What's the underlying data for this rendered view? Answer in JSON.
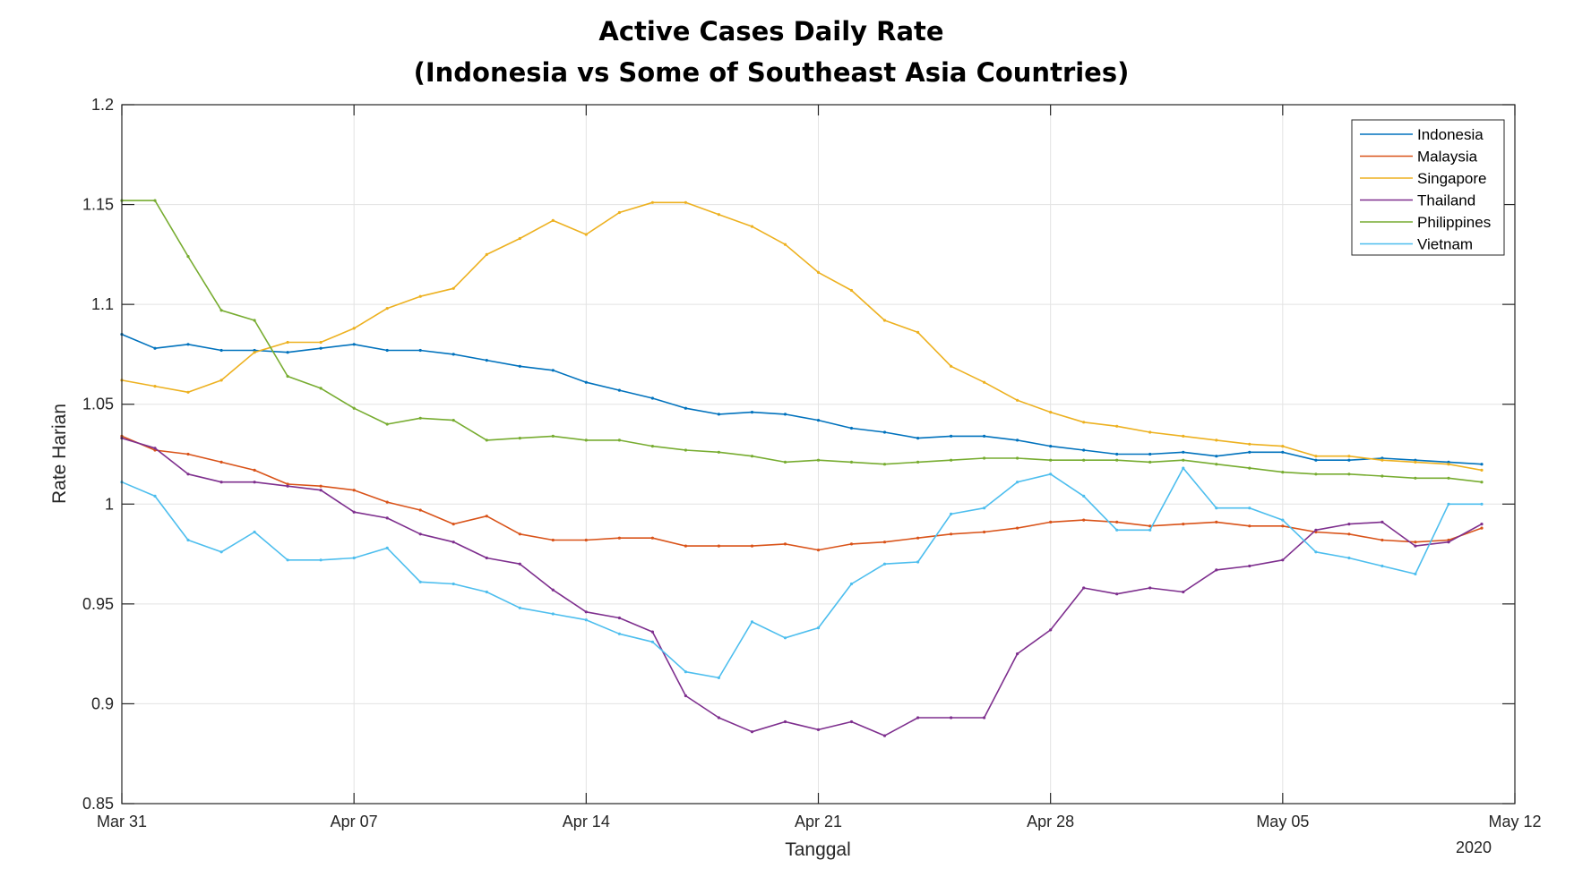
{
  "chart_data": {
    "type": "line",
    "title": "Active Cases Daily Rate",
    "subtitle": "(Indonesia vs Some of Southeast Asia Countries)",
    "xlabel": "Tanggal",
    "ylabel": "Rate Harian",
    "x_year_label": "2020",
    "x_start": "2020-03-31",
    "x_end": "2020-05-12",
    "xlim": [
      "2020-03-31",
      "2020-05-12"
    ],
    "ylim": [
      0.85,
      1.2
    ],
    "x_ticks": [
      {
        "date": "2020-03-31",
        "label": "Mar 31"
      },
      {
        "date": "2020-04-07",
        "label": "Apr 07"
      },
      {
        "date": "2020-04-14",
        "label": "Apr 14"
      },
      {
        "date": "2020-04-21",
        "label": "Apr 21"
      },
      {
        "date": "2020-04-28",
        "label": "Apr 28"
      },
      {
        "date": "2020-05-05",
        "label": "May 05"
      },
      {
        "date": "2020-05-12",
        "label": "May 12"
      }
    ],
    "y_ticks": [
      "0.85",
      "0.9",
      "0.95",
      "1",
      "1.05",
      "1.1",
      "1.15",
      "1.2"
    ],
    "grid": true,
    "legend_position": "top-right",
    "series": [
      {
        "name": "Indonesia",
        "color": "#0072BD",
        "values": [
          1.085,
          1.078,
          1.08,
          1.077,
          1.077,
          1.076,
          1.078,
          1.08,
          1.077,
          1.077,
          1.075,
          1.072,
          1.069,
          1.067,
          1.061,
          1.057,
          1.053,
          1.048,
          1.045,
          1.046,
          1.045,
          1.042,
          1.038,
          1.036,
          1.033,
          1.034,
          1.034,
          1.032,
          1.029,
          1.027,
          1.025,
          1.025,
          1.026,
          1.024,
          1.026,
          1.026,
          1.022,
          1.022,
          1.023,
          1.022,
          1.021,
          1.02
        ]
      },
      {
        "name": "Malaysia",
        "color": "#D95319",
        "values": [
          1.034,
          1.027,
          1.025,
          1.021,
          1.017,
          1.01,
          1.009,
          1.007,
          1.001,
          0.997,
          0.99,
          0.994,
          0.985,
          0.982,
          0.982,
          0.983,
          0.983,
          0.979,
          0.979,
          0.979,
          0.98,
          0.977,
          0.98,
          0.981,
          0.983,
          0.985,
          0.986,
          0.988,
          0.991,
          0.992,
          0.991,
          0.989,
          0.99,
          0.991,
          0.989,
          0.989,
          0.986,
          0.985,
          0.982,
          0.981,
          0.982,
          0.988
        ]
      },
      {
        "name": "Singapore",
        "color": "#EDB120",
        "values": [
          1.062,
          1.059,
          1.056,
          1.062,
          1.076,
          1.081,
          1.081,
          1.088,
          1.098,
          1.104,
          1.108,
          1.125,
          1.133,
          1.142,
          1.135,
          1.146,
          1.151,
          1.151,
          1.145,
          1.139,
          1.13,
          1.116,
          1.107,
          1.092,
          1.086,
          1.069,
          1.061,
          1.052,
          1.046,
          1.041,
          1.039,
          1.036,
          1.034,
          1.032,
          1.03,
          1.029,
          1.024,
          1.024,
          1.022,
          1.021,
          1.02,
          1.017
        ]
      },
      {
        "name": "Thailand",
        "color": "#7E2F8E",
        "values": [
          1.033,
          1.028,
          1.015,
          1.011,
          1.011,
          1.009,
          1.007,
          0.996,
          0.993,
          0.985,
          0.981,
          0.973,
          0.97,
          0.957,
          0.946,
          0.943,
          0.936,
          0.904,
          0.893,
          0.886,
          0.891,
          0.887,
          0.891,
          0.884,
          0.893,
          0.893,
          0.893,
          0.925,
          0.937,
          0.958,
          0.955,
          0.958,
          0.956,
          0.967,
          0.969,
          0.972,
          0.987,
          0.99,
          0.991,
          0.979,
          0.981,
          0.99
        ]
      },
      {
        "name": "Philippines",
        "color": "#77AC30",
        "values": [
          1.152,
          1.152,
          1.124,
          1.097,
          1.092,
          1.064,
          1.058,
          1.048,
          1.04,
          1.043,
          1.042,
          1.032,
          1.033,
          1.034,
          1.032,
          1.032,
          1.029,
          1.027,
          1.026,
          1.024,
          1.021,
          1.022,
          1.021,
          1.02,
          1.021,
          1.022,
          1.023,
          1.023,
          1.022,
          1.022,
          1.022,
          1.021,
          1.022,
          1.02,
          1.018,
          1.016,
          1.015,
          1.015,
          1.014,
          1.013,
          1.013,
          1.011
        ]
      },
      {
        "name": "Vietnam",
        "color": "#4DBEEE",
        "values": [
          1.011,
          1.004,
          0.982,
          0.976,
          0.986,
          0.972,
          0.972,
          0.973,
          0.978,
          0.961,
          0.96,
          0.956,
          0.948,
          0.945,
          0.942,
          0.935,
          0.931,
          0.916,
          0.913,
          0.941,
          0.933,
          0.938,
          0.96,
          0.97,
          0.971,
          0.995,
          0.998,
          1.011,
          1.015,
          1.004,
          0.987,
          0.987,
          1.018,
          0.998,
          0.998,
          0.992,
          0.976,
          0.973,
          0.969,
          0.965,
          1.0,
          1.0
        ]
      }
    ]
  }
}
